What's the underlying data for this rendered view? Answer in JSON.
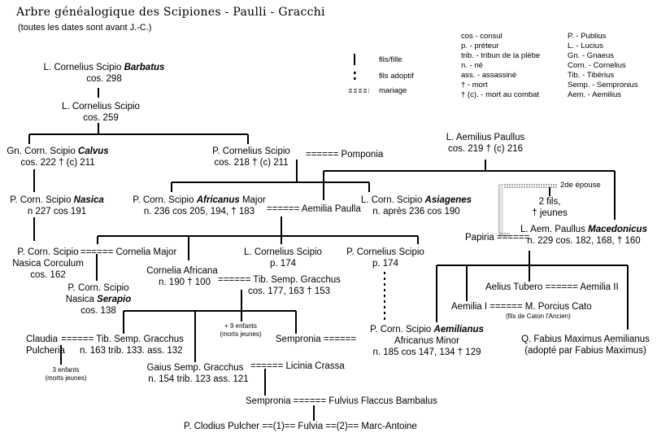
{
  "title": "Arbre généalogique des Scipiones - Paulli - Gracchi",
  "subtitle": "(toutes les dates sont avant J.-C.)",
  "legend": {
    "child": "fils/fille",
    "adopted": "fils adoptif",
    "marriage": "mariage",
    "marriage_symbol": "===="
  },
  "abbrev_left": [
    "cos - consul",
    "p. - préteur",
    "trib. - tribun de la plèbe",
    "n. - né",
    "ass. - assassiné",
    "† - mort",
    "† (c). - mort au combat"
  ],
  "abbrev_right": [
    "P. - Publius",
    "L. - Lucius",
    "Gn. - Gnaeus",
    "Corn. - Cornelius",
    "Tib. - Tibérius",
    "Semp. - Sempronius",
    "Aem. - Aemilius"
  ],
  "people": {
    "barbatus": {
      "pre": "L. Cornelius Scipio ",
      "cog": "Barbatus",
      "line2": "cos. 298"
    },
    "scipio259": {
      "pre": "L. Cornelius Scipio",
      "cog": "",
      "line2": "cos. 259"
    },
    "calvus": {
      "pre": "Gn. Corn. Scipio ",
      "cog": "Calvus",
      "line2": "cos. 222 † (c) 211"
    },
    "publius218": {
      "pre": "P. Cornelius Scipio",
      "cog": "",
      "line2": "cos. 218 † (c) 211"
    },
    "pomponia": {
      "pre": "====== Pomponia"
    },
    "paullus219": {
      "pre": "L. Aemilius Paullus",
      "cog": "",
      "line2": "cos. 219 † (c) 216"
    },
    "nasica": {
      "pre": "P. Corn. Scipio ",
      "cog": "Nasica",
      "line2": "n 227 cos 191"
    },
    "africanus": {
      "pre": "P. Corn. Scipio ",
      "cog": "Africanus",
      "post": " Major",
      "line2": "n. 236 cos 205, 194, † 183"
    },
    "aemilia_paulla": {
      "pre": "====== Aemilia Paulla"
    },
    "asiagenes": {
      "pre": "L. Corn. Scipio ",
      "cog": "Asiagenes",
      "line2": "n. après 236 cos 190"
    },
    "second_wife": {
      "pre": "2de épouse"
    },
    "two_sons": {
      "pre": "2 fils,",
      "line2": "† jeunes"
    },
    "papiria": {
      "pre": "Papiria ======"
    },
    "macedonicus": {
      "pre": "L. Aem. Paullus ",
      "cog": "Macedonicus",
      "line2": "n. 229 cos. 182, 168, † 160"
    },
    "corculum": {
      "pre": "P. Corn. Scipio",
      "line2": "Nasica Corculum",
      "line3": "cos. 162"
    },
    "cornelia_major": {
      "pre": "====== Cornelia Major"
    },
    "serapio": {
      "pre": "P. Corn. Scipio",
      "line2a": "Nasica ",
      "cog": "Serapio",
      "line3": "cos. 138"
    },
    "cornelia_africana": {
      "pre": "Cornelia Africana",
      "line2": "n. 190 † 100"
    },
    "tib_gracchus_father": {
      "pre": "====== Tib. Semp. Gracchus",
      "line2": "cos. 177, 163 † 153"
    },
    "lucius174": {
      "pre": "L. Cornelius Scipio",
      "line2": "p. 174"
    },
    "publius174": {
      "pre": "P. Cornelius Scipio",
      "line2": "p. 174"
    },
    "tubero": {
      "pre": "Aelius Tubero ====== Aemilia II"
    },
    "aemilia1": {
      "pre": "Aemilia I ====== M. Porcius Cato",
      "note": "(fils de Caton l'Ancien)"
    },
    "nine_children": {
      "pre": "+ 9 enfants",
      "line2": "(morts jeunes)"
    },
    "claudia": {
      "pre": "Claudia",
      "line2": "Pulcheria"
    },
    "tib_gracchus_son": {
      "pre": "====== Tib. Semp. Gracchus",
      "line2": "n. 163 trib. 133. ass. 132"
    },
    "three_children": {
      "pre": "3 enfants",
      "line2": "(morts jeunes)"
    },
    "sempronia1": {
      "pre": "Sempronia ======"
    },
    "aemilianus": {
      "pre": "P. Corn. Scipio ",
      "cog": "Aemilianus",
      "line2": "Africanus Minor",
      "line3": "n. 185 cos 147, 134 † 129"
    },
    "fabius": {
      "pre": "Q. Fabius Maximus Aemilianus",
      "line2": "(adopté par Fabius Maximus)"
    },
    "gaius": {
      "pre": "Gaius Semp. Gracchus",
      "line2": "n. 154 trib. 123 ass. 121"
    },
    "licinia": {
      "pre": "====== Licinia Crassa"
    },
    "sempronia2": {
      "pre": "Sempronia ====== Fulvius Flaccus Bambalus"
    },
    "fulvia": {
      "pre": "P. Clodius Pulcher ==(1)== Fulvia ==(2)== Marc-Antoine"
    }
  }
}
